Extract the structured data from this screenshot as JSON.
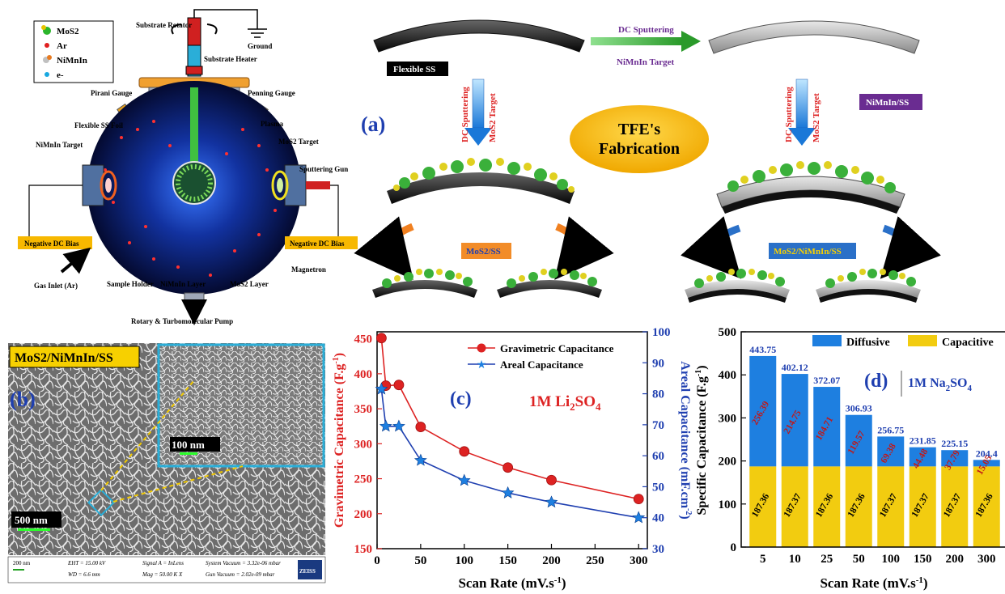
{
  "colors": {
    "red": "#dd2222",
    "blue": "#1f3fb0",
    "diffusive": "#1e7fe0",
    "capacitive": "#f2cc10",
    "purple": "#6a2c91",
    "orange_label": "#f28c28",
    "gold": "#f7b800",
    "green_arrow": "#3aa63a",
    "cyan": "#2aaed8",
    "sphere": "#0a1a5a"
  },
  "chamber": {
    "legend": [
      "MoS2",
      "Ar",
      "NiMnIn",
      "e-"
    ],
    "labels": {
      "substrate_rotator": "Substrate Rotator",
      "ground": "Ground",
      "substrate_heater": "Substrate Heater",
      "pirani": "Pirani Gauge",
      "penning": "Penning Gauge",
      "flexible_foil": "Flexible SS Foil",
      "plasma": "Plasma",
      "nimnin_target": "NiMnIn Target",
      "mos2_target": "MoS2 Target",
      "sputtering_gun": "Sputtering Gun",
      "neg_bias_left": "Negative DC Bias",
      "neg_bias_right": "Negative DC Bias",
      "magnetron": "Magnetron",
      "gas_inlet": "Gas Inlet (Ar)",
      "sample_holder": "Sample Holder",
      "nimnin_layer": "NiMnIn Layer",
      "mos2_layer": "MoS2 Layer",
      "pump": "Rotary & Turbomolecular Pump"
    }
  },
  "fabrication": {
    "panel_label": "(a)",
    "flexible_ss": "Flexible SS",
    "dc_sputtering": "DC Sputtering",
    "nimnin_target": "NiMnIn Target",
    "nimnin_ss": "NiMnIn/SS",
    "mos2_target": "MoS2 Target",
    "tfe_line1": "TFE's",
    "tfe_line2": "Fabrication",
    "mos2_ss": "MoS2/SS",
    "mos2_nimnin_ss": "MoS2/NiMnIn/SS"
  },
  "sem": {
    "panel_label": "(b)",
    "title": "MoS2/NiMnIn/SS",
    "scale_main": "500 nm",
    "scale_inset": "100 nm",
    "info": {
      "scale": "200 nm",
      "eht": "EHT = 15.00 kV",
      "wd": "WD = 6.6 mm",
      "signal": "Signal A = InLens",
      "mag": "Mag = 50.00 K X",
      "sysvac": "System Vacuum = 3.32e-06 mbar",
      "gunvac": "Gun Vacuum = 2.02e-09 mbar",
      "brand": "ZEISS"
    }
  },
  "panel_c": {
    "panel_label": "(c)",
    "electrolyte": "1M Li2SO4"
  },
  "panel_d": {
    "panel_label": "(d)",
    "electrolyte": "1M Na2SO4"
  },
  "chart_data": [
    {
      "type": "line",
      "xlabel": "Scan Rate (mV.s-1)",
      "ylabel": "Gravimetric Capacitance (F.g-1)",
      "y2label": "Areal Capacitance (mF.cm-2)",
      "xlim": [
        0,
        310
      ],
      "ylim": [
        150,
        460
      ],
      "y2lim": [
        30,
        100
      ],
      "xticks": [
        0,
        50,
        100,
        150,
        200,
        250,
        300
      ],
      "yticks": [
        150,
        200,
        250,
        300,
        350,
        400,
        450
      ],
      "y2ticks": [
        30,
        40,
        50,
        60,
        70,
        80,
        90,
        100
      ],
      "legend_position": "top-right",
      "series": [
        {
          "name": "Gravimetric Capacitance",
          "axis": "left",
          "marker": "circle",
          "x": [
            5,
            10,
            25,
            50,
            100,
            150,
            200,
            300
          ],
          "y": [
            451,
            383,
            384,
            324,
            289,
            266,
            248,
            221
          ]
        },
        {
          "name": "Areal Capacitance",
          "axis": "right",
          "marker": "star",
          "x": [
            5,
            10,
            25,
            50,
            100,
            150,
            200,
            300
          ],
          "y": [
            81.5,
            69.5,
            69.5,
            58.5,
            52,
            48,
            45,
            40
          ]
        }
      ]
    },
    {
      "type": "bar",
      "stacked": true,
      "xlabel": "Scan Rate (mV.s-1)",
      "ylabel": "Specific Capacitance (F.g-1)",
      "ylim": [
        0,
        500
      ],
      "yticks": [
        0,
        100,
        200,
        300,
        400,
        500
      ],
      "legend_position": "top",
      "categories": [
        "5",
        "10",
        "25",
        "50",
        "100",
        "150",
        "200",
        "300"
      ],
      "totals": [
        "443.75",
        "402.12",
        "372.07",
        "306.93",
        "256.75",
        "231.85",
        "225.15",
        "204.4"
      ],
      "series": [
        {
          "name": "Capacitive",
          "values": [
            187.36,
            187.37,
            187.36,
            187.36,
            187.37,
            187.37,
            187.37,
            187.36
          ],
          "labels": [
            "187.36",
            "187.37",
            "187.36",
            "187.36",
            "187.37",
            "187.37",
            "187.37",
            "187.36"
          ]
        },
        {
          "name": "Diffusive",
          "values": [
            256.39,
            214.75,
            184.71,
            119.57,
            69.38,
            44.48,
            37.79,
            15.05
          ],
          "labels": [
            "256.39",
            "214.75",
            "184.71",
            "119.57",
            "69.38",
            "44.48",
            "37.79",
            "15.05"
          ]
        }
      ]
    }
  ]
}
